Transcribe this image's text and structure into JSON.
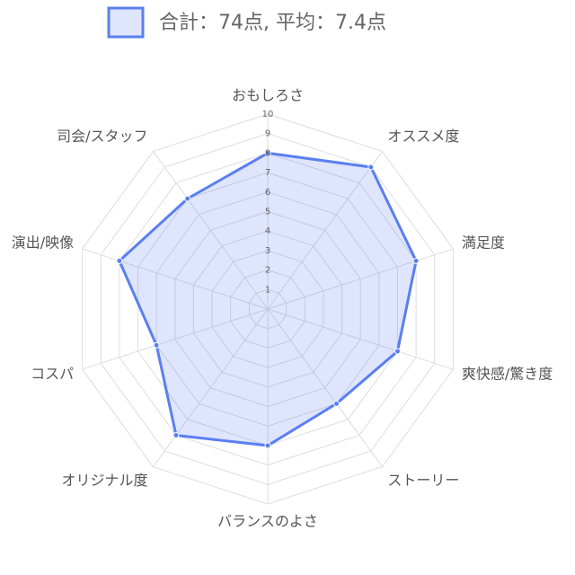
{
  "chart_data": {
    "type": "radar",
    "categories": [
      "おもしろさ",
      "オススメ度",
      "満足度",
      "爽快感/驚き度",
      "ストーリー",
      "バランスのよさ",
      "オリジナル度",
      "コスパ",
      "演出/映像",
      "司会/スタッフ"
    ],
    "series": [
      {
        "name": "合計：74点, 平均：7.4点",
        "color": "#5b7ff0",
        "values": [
          8,
          9,
          8,
          7,
          6,
          7,
          8,
          6,
          8,
          7
        ]
      }
    ],
    "rlim": [
      0,
      10
    ],
    "rticks": [
      1,
      2,
      3,
      4,
      5,
      6,
      7,
      8,
      9,
      10
    ],
    "grid": true
  }
}
